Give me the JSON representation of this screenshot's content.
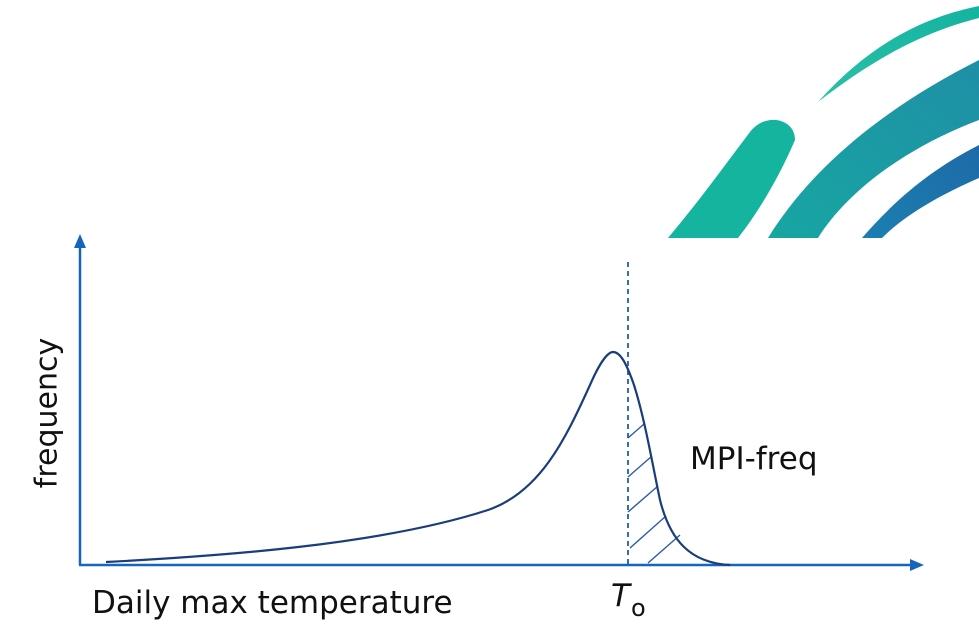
{
  "diagram": {
    "y_axis_label": "frequency",
    "x_axis_label": "Daily max temperature",
    "region_label": "MPI-freq",
    "threshold_symbol": "T",
    "threshold_subscript": "o"
  },
  "colors": {
    "axis": "#1565c0",
    "curve": "#1a3d7c",
    "threshold_line": "#1f5fa8",
    "hatch": "#2a5aa8",
    "brand_teal": "#13b3a0",
    "brand_mid": "#1d99a2",
    "brand_blue": "#1f6ea8"
  }
}
